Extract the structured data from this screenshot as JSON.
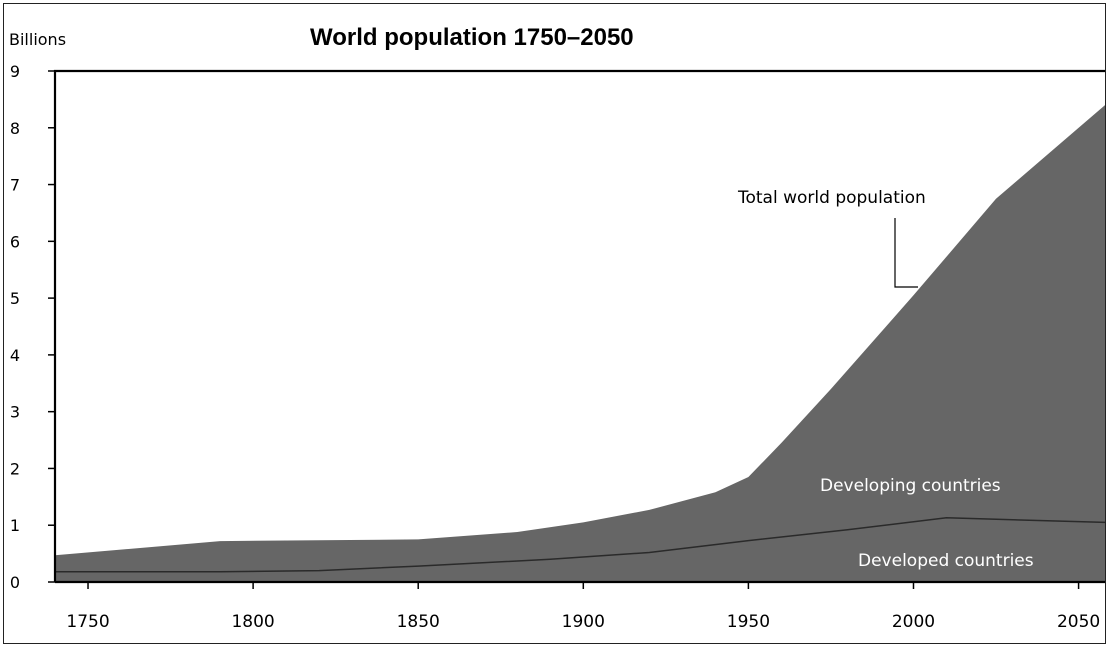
{
  "chart_data": {
    "type": "area",
    "title": "World population 1750–2050",
    "ylabel": "Billions",
    "xlabel": "",
    "xlim": [
      1740,
      2058
    ],
    "ylim": [
      0,
      9
    ],
    "x_ticks": [
      "1750",
      "1800",
      "1850",
      "1900",
      "1950",
      "2000",
      "2050"
    ],
    "y_ticks": [
      "0",
      "1",
      "2",
      "3",
      "4",
      "5",
      "6",
      "7",
      "8",
      "9"
    ],
    "grid": false,
    "colors": {
      "total_area": "#666666",
      "axis": "#000000"
    },
    "series": [
      {
        "name": "Total world population",
        "x": [
          1740,
          1790,
          1850,
          1880,
          1900,
          1920,
          1940,
          1950,
          1960,
          1975,
          2000,
          2025,
          2058
        ],
        "values": [
          0.47,
          0.72,
          0.75,
          0.88,
          1.05,
          1.27,
          1.58,
          1.85,
          2.45,
          3.4,
          5.05,
          6.75,
          8.4
        ]
      },
      {
        "name": "Developed countries",
        "x": [
          1740,
          1790,
          1820,
          1850,
          1890,
          1920,
          1950,
          1980,
          2010,
          2058
        ],
        "values": [
          0.18,
          0.18,
          0.2,
          0.28,
          0.4,
          0.52,
          0.73,
          0.92,
          1.13,
          1.05
        ]
      }
    ],
    "annotations": [
      "Total world population",
      "Developing countries",
      "Developed countries"
    ]
  }
}
